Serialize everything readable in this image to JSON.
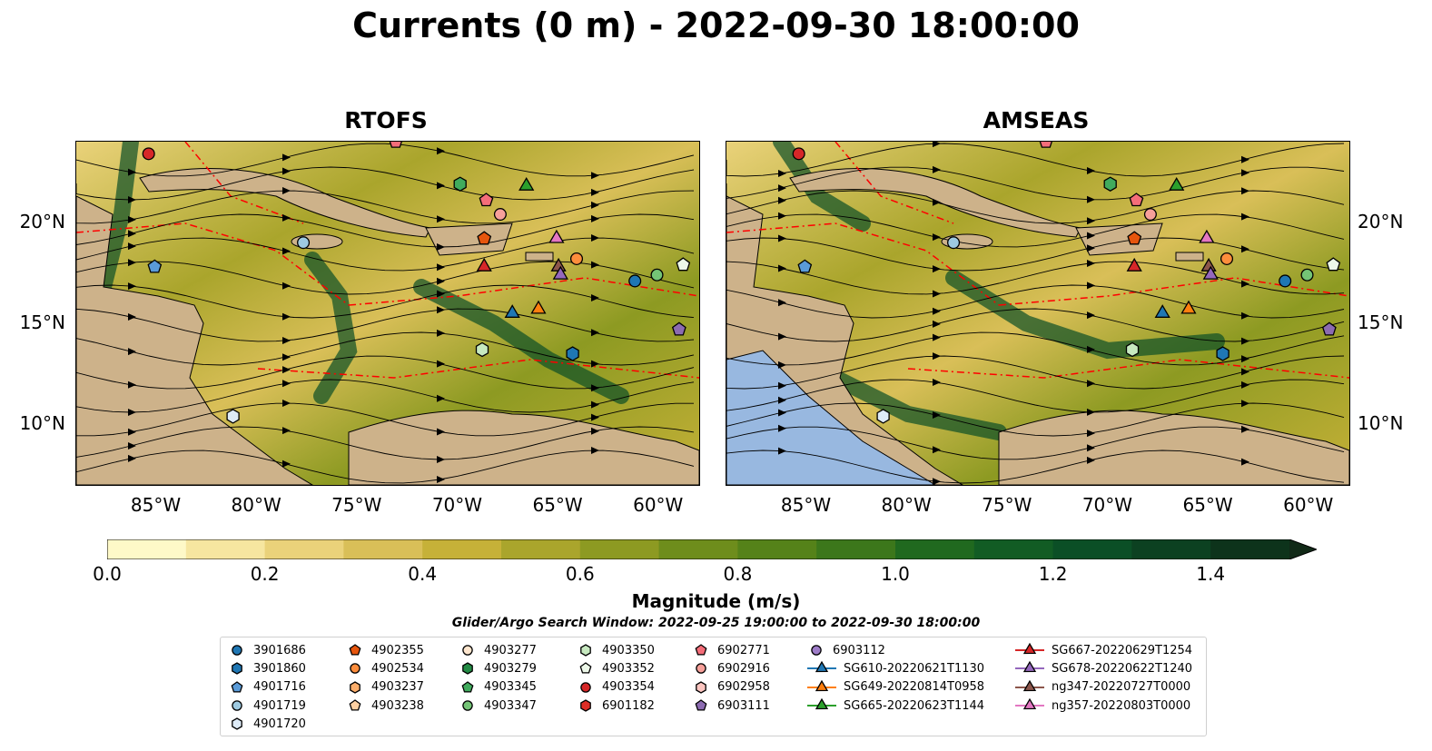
{
  "title": "Currents (0 m) - 2022-09-30 18:00:00",
  "panels": [
    {
      "title": "RTOFS"
    },
    {
      "title": "AMSEAS"
    }
  ],
  "axes": {
    "x_ticks": [
      "85°W",
      "80°W",
      "75°W",
      "70°W",
      "65°W",
      "60°W"
    ],
    "y_ticks": [
      "20°N",
      "15°N",
      "10°N"
    ]
  },
  "colorbar": {
    "label": "Magnitude (m/s)",
    "ticks": [
      "0.0",
      "0.2",
      "0.4",
      "0.6",
      "0.8",
      "1.0",
      "1.2",
      "1.4"
    ],
    "colors": [
      "#fef9c8",
      "#f6e6a0",
      "#ead27a",
      "#d9bf58",
      "#c6b138",
      "#aaa52c",
      "#8d9a22",
      "#6e8d1c",
      "#558219",
      "#3c771b",
      "#20691f",
      "#125c24",
      "#0b4f26",
      "#0c4121",
      "#0d331b",
      "#112917"
    ]
  },
  "search_window": "Glider/Argo Search Window: 2022-09-25 19:00:00 to 2022-09-30 18:00:00",
  "legend": {
    "columns": [
      [
        {
          "label": "3901686",
          "marker": "circle",
          "color": "#1f77b4"
        },
        {
          "label": "3901860",
          "marker": "hexagon",
          "color": "#1f77b4"
        },
        {
          "label": "4901716",
          "marker": "pentagon",
          "color": "#5a9bd8"
        },
        {
          "label": "4901719",
          "marker": "circle",
          "color": "#9ecae1"
        },
        {
          "label": "4901720",
          "marker": "hexagon",
          "color": "#deebf7"
        }
      ],
      [
        {
          "label": "4902355",
          "marker": "pentagon",
          "color": "#e6550d"
        },
        {
          "label": "4902534",
          "marker": "circle",
          "color": "#fd8d3c"
        },
        {
          "label": "4903237",
          "marker": "hexagon",
          "color": "#fdae6b"
        },
        {
          "label": "4903238",
          "marker": "pentagon",
          "color": "#fdd0a2"
        }
      ],
      [
        {
          "label": "4903277",
          "marker": "circle",
          "color": "#fee6ce"
        },
        {
          "label": "4903279",
          "marker": "hexagon",
          "color": "#238b45"
        },
        {
          "label": "4903345",
          "marker": "pentagon",
          "color": "#41ab5d"
        },
        {
          "label": "4903347",
          "marker": "circle",
          "color": "#74c476"
        }
      ],
      [
        {
          "label": "4903350",
          "marker": "hexagon",
          "color": "#c7e9c0"
        },
        {
          "label": "4903352",
          "marker": "pentagon",
          "color": "#edf8e9"
        },
        {
          "label": "4903354",
          "marker": "circle",
          "color": "#d62728"
        },
        {
          "label": "6901182",
          "marker": "hexagon",
          "color": "#de2d26"
        }
      ],
      [
        {
          "label": "6902771",
          "marker": "pentagon",
          "color": "#f46d79"
        },
        {
          "label": "6902916",
          "marker": "circle",
          "color": "#f7a09a"
        },
        {
          "label": "6902958",
          "marker": "hexagon",
          "color": "#fcc5c0"
        },
        {
          "label": "6903111",
          "marker": "pentagon",
          "color": "#8c6bb1"
        }
      ],
      [
        {
          "label": "6903112",
          "marker": "circle",
          "color": "#9e7cc8"
        },
        {
          "label": "SG610-20220621T1130",
          "marker": "triangle",
          "color": "#1f77b4"
        },
        {
          "label": "SG649-20220814T0958",
          "marker": "triangle",
          "color": "#ff7f0e"
        },
        {
          "label": "SG665-20220623T1144",
          "marker": "triangle",
          "color": "#2ca02c"
        }
      ],
      [
        {
          "label": "SG667-20220629T1254",
          "marker": "triangle",
          "color": "#d62728"
        },
        {
          "label": "SG678-20220622T1240",
          "marker": "triangle",
          "color": "#9467bd"
        },
        {
          "label": "ng347-20220727T0000",
          "marker": "triangle",
          "color": "#8c564b"
        },
        {
          "label": "ng357-20220803T0000",
          "marker": "triangle",
          "color": "#e377c2"
        }
      ]
    ]
  },
  "map_colors": {
    "land": "#cdb28a",
    "ocean_pacific": "#98b8e0",
    "eez": "#ff0000",
    "streamline": "#000000"
  },
  "extent": {
    "lon": [
      -89,
      -58
    ],
    "lat": [
      7,
      24
    ]
  },
  "markers": [
    {
      "lon": -85.4,
      "lat": 23.4,
      "marker": "circle",
      "color": "#d62728"
    },
    {
      "lon": -73.1,
      "lat": 24.0,
      "marker": "pentagon",
      "color": "#f46d79"
    },
    {
      "lon": -69.9,
      "lat": 21.9,
      "marker": "hexagon",
      "color": "#41ab5d"
    },
    {
      "lon": -68.6,
      "lat": 21.1,
      "marker": "pentagon",
      "color": "#f46d79"
    },
    {
      "lon": -67.9,
      "lat": 20.4,
      "marker": "circle",
      "color": "#f7a09a"
    },
    {
      "lon": -66.6,
      "lat": 21.8,
      "marker": "triangle",
      "color": "#2ca02c"
    },
    {
      "lon": -77.7,
      "lat": 19.0,
      "marker": "circle",
      "color": "#9ecae1"
    },
    {
      "lon": -85.1,
      "lat": 17.8,
      "marker": "pentagon",
      "color": "#5a9bd8"
    },
    {
      "lon": -68.7,
      "lat": 19.2,
      "marker": "pentagon",
      "color": "#e6550d"
    },
    {
      "lon": -68.7,
      "lat": 17.8,
      "marker": "triangle",
      "color": "#d62728"
    },
    {
      "lon": -65.1,
      "lat": 19.2,
      "marker": "triangle",
      "color": "#e377c2"
    },
    {
      "lon": -65.0,
      "lat": 17.8,
      "marker": "triangle",
      "color": "#8c564b"
    },
    {
      "lon": -64.9,
      "lat": 17.4,
      "marker": "triangle",
      "color": "#9467bd"
    },
    {
      "lon": -64.1,
      "lat": 18.2,
      "marker": "circle",
      "color": "#fd8d3c"
    },
    {
      "lon": -61.2,
      "lat": 17.1,
      "marker": "circle",
      "color": "#1f77b4"
    },
    {
      "lon": -60.1,
      "lat": 17.4,
      "marker": "circle",
      "color": "#74c476"
    },
    {
      "lon": -58.8,
      "lat": 17.9,
      "marker": "pentagon",
      "color": "#edf8e9"
    },
    {
      "lon": -67.3,
      "lat": 15.5,
      "marker": "triangle",
      "color": "#1f77b4"
    },
    {
      "lon": -66.0,
      "lat": 15.7,
      "marker": "triangle",
      "color": "#ff7f0e"
    },
    {
      "lon": -68.8,
      "lat": 13.7,
      "marker": "hexagon",
      "color": "#c7e9c0"
    },
    {
      "lon": -64.3,
      "lat": 13.5,
      "marker": "hexagon",
      "color": "#1f77b4"
    },
    {
      "lon": -59.0,
      "lat": 14.7,
      "marker": "pentagon",
      "color": "#8c6bb1"
    },
    {
      "lon": -81.2,
      "lat": 10.4,
      "marker": "hexagon",
      "color": "#deebf7"
    }
  ]
}
